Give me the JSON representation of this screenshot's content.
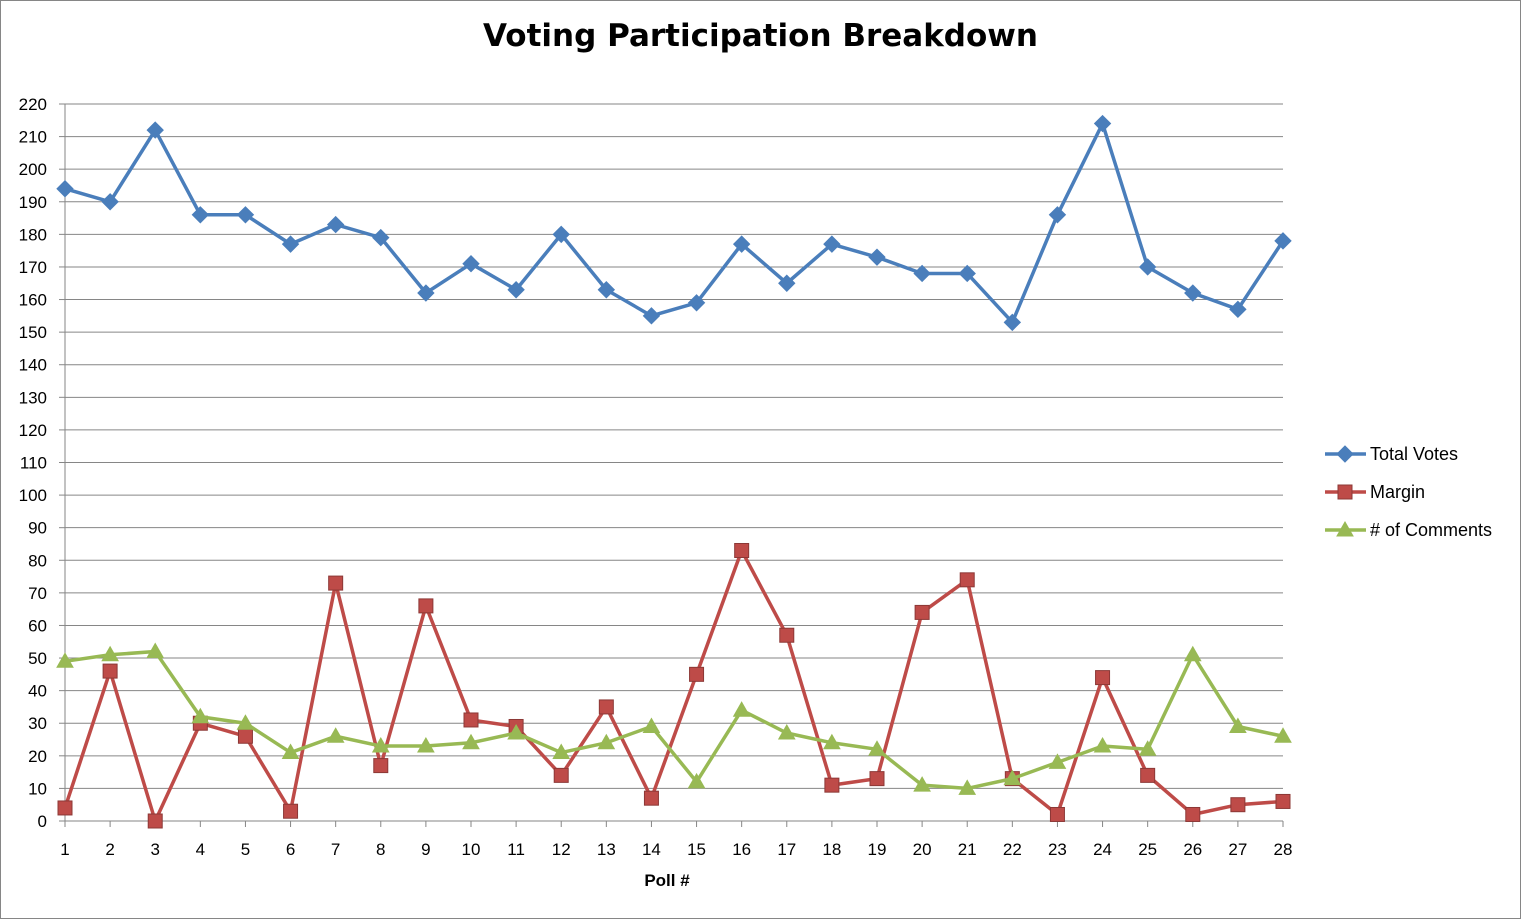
{
  "chart_data": {
    "type": "line",
    "title": "Voting Participation Breakdown",
    "xlabel": "Poll #",
    "ylabel": "",
    "ylim": [
      0,
      220
    ],
    "ytick_step": 10,
    "grid": true,
    "legend_position": "right",
    "x": [
      1,
      2,
      3,
      4,
      5,
      6,
      7,
      8,
      9,
      10,
      11,
      12,
      13,
      14,
      15,
      16,
      17,
      18,
      19,
      20,
      21,
      22,
      23,
      24,
      25,
      26,
      27,
      28
    ],
    "series": [
      {
        "name": "Total Votes",
        "color": "#4A7EBB",
        "marker": "diamond",
        "values": [
          194,
          190,
          212,
          186,
          186,
          177,
          183,
          179,
          162,
          171,
          163,
          180,
          163,
          155,
          159,
          177,
          165,
          177,
          173,
          168,
          168,
          153,
          186,
          214,
          170,
          162,
          157,
          178
        ]
      },
      {
        "name": "Margin",
        "color": "#BE4B48",
        "marker": "square",
        "values": [
          4,
          46,
          0,
          30,
          26,
          3,
          73,
          17,
          66,
          31,
          29,
          14,
          35,
          7,
          45,
          83,
          57,
          11,
          13,
          64,
          74,
          13,
          2,
          44,
          14,
          2,
          5,
          6
        ]
      },
      {
        "name": "# of Comments",
        "color": "#98B954",
        "marker": "triangle",
        "values": [
          49,
          51,
          52,
          32,
          30,
          21,
          26,
          23,
          23,
          24,
          27,
          21,
          24,
          29,
          12,
          34,
          27,
          24,
          22,
          11,
          10,
          13,
          18,
          23,
          22,
          51,
          29,
          26
        ]
      }
    ]
  }
}
